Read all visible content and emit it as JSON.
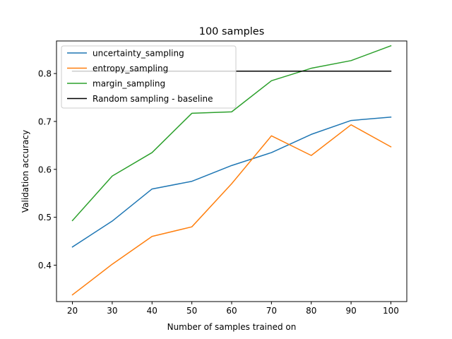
{
  "chart_data": {
    "type": "line",
    "title": "100 samples",
    "xlabel": "Number of samples trained on",
    "ylabel": "Validation accuracy",
    "x": [
      20,
      30,
      40,
      50,
      60,
      70,
      80,
      90,
      100
    ],
    "xticks": [
      "20",
      "30",
      "40",
      "50",
      "60",
      "70",
      "80",
      "90",
      "100"
    ],
    "yticks": [
      "0.4",
      "0.5",
      "0.6",
      "0.7",
      "0.8"
    ],
    "xlim": [
      16,
      104
    ],
    "ylim": [
      0.324,
      0.868
    ],
    "grid": false,
    "legend_position": "upper-left",
    "series": [
      {
        "name": "uncertainty_sampling",
        "color": "#1f77b4",
        "values": [
          0.438,
          0.492,
          0.559,
          0.575,
          0.608,
          0.635,
          0.673,
          0.702,
          0.709
        ]
      },
      {
        "name": "entropy_sampling",
        "color": "#ff7f0e",
        "values": [
          0.338,
          0.402,
          0.46,
          0.48,
          0.57,
          0.67,
          0.629,
          0.693,
          0.647
        ]
      },
      {
        "name": "margin_sampling",
        "color": "#2ca02c",
        "values": [
          0.493,
          0.586,
          0.635,
          0.717,
          0.72,
          0.785,
          0.811,
          0.827,
          0.858
        ]
      },
      {
        "name": "Random sampling - baseline",
        "color": "#000000",
        "values": [
          0.805,
          0.805,
          0.805,
          0.805,
          0.805,
          0.805,
          0.805,
          0.805,
          0.805
        ]
      }
    ]
  }
}
